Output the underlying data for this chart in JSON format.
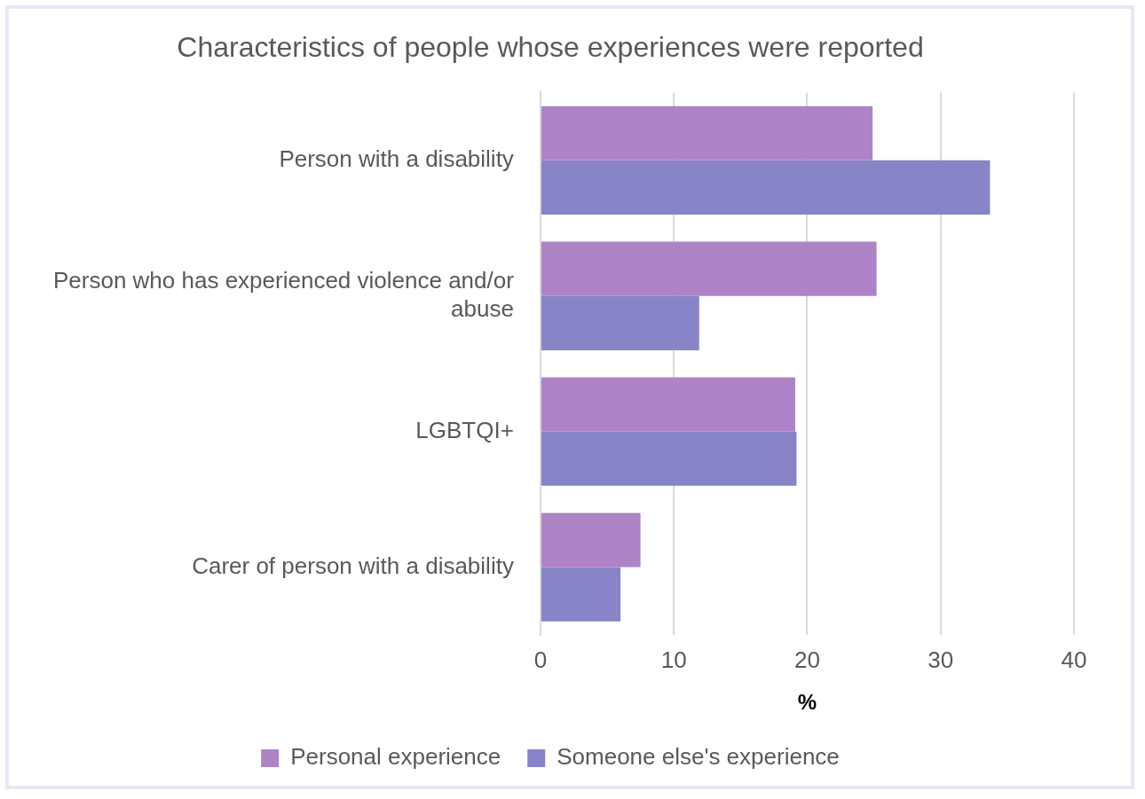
{
  "chart_data": {
    "type": "bar",
    "orientation": "horizontal",
    "title": "Characteristics of people whose experiences were reported",
    "xlabel": "%",
    "categories": [
      "Person with a disability",
      "Person who has experienced violence and/or abuse",
      "LGBTQI+",
      "Carer of person with a disability"
    ],
    "series": [
      {
        "name": "Personal experience",
        "color": "#ae84c6",
        "values": [
          24.9,
          25.2,
          19.1,
          7.5
        ]
      },
      {
        "name": "Someone else's experience",
        "color": "#8785c7",
        "values": [
          33.7,
          11.9,
          19.2,
          6.0
        ]
      }
    ],
    "xlim": [
      0,
      40
    ],
    "xticks": [
      0,
      10,
      20,
      30,
      40
    ],
    "grid": "x",
    "legend": "bottom"
  }
}
